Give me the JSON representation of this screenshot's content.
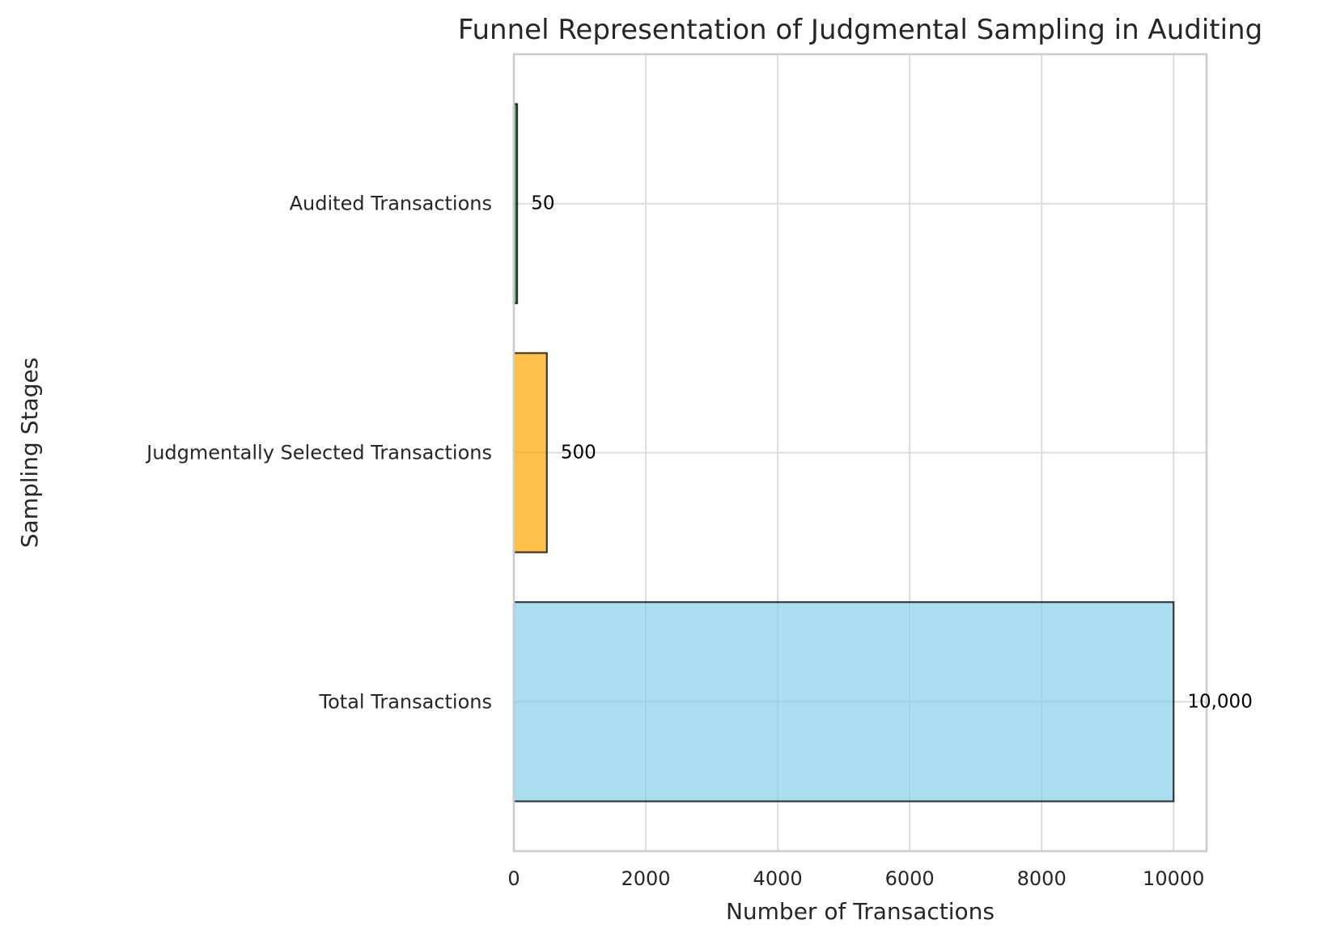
{
  "chart_data": {
    "type": "bar",
    "orientation": "horizontal",
    "title": "Funnel Representation of Judgmental Sampling in Auditing",
    "xlabel": "Number of Transactions",
    "ylabel": "Sampling Stages",
    "categories": [
      "Total Transactions",
      "Judgmentally Selected Transactions",
      "Audited Transactions"
    ],
    "values": [
      10000,
      500,
      50
    ],
    "data_labels": [
      "10,000",
      "500",
      "50"
    ],
    "colors": [
      "#87ceeb",
      "#ffa500",
      "#006400"
    ],
    "xlim": [
      0,
      10500
    ],
    "xticks": [
      0,
      2000,
      4000,
      6000,
      8000,
      10000
    ],
    "xtick_labels": [
      "0",
      "2000",
      "4000",
      "6000",
      "8000",
      "10000"
    ],
    "grid": true,
    "legend": "none"
  }
}
